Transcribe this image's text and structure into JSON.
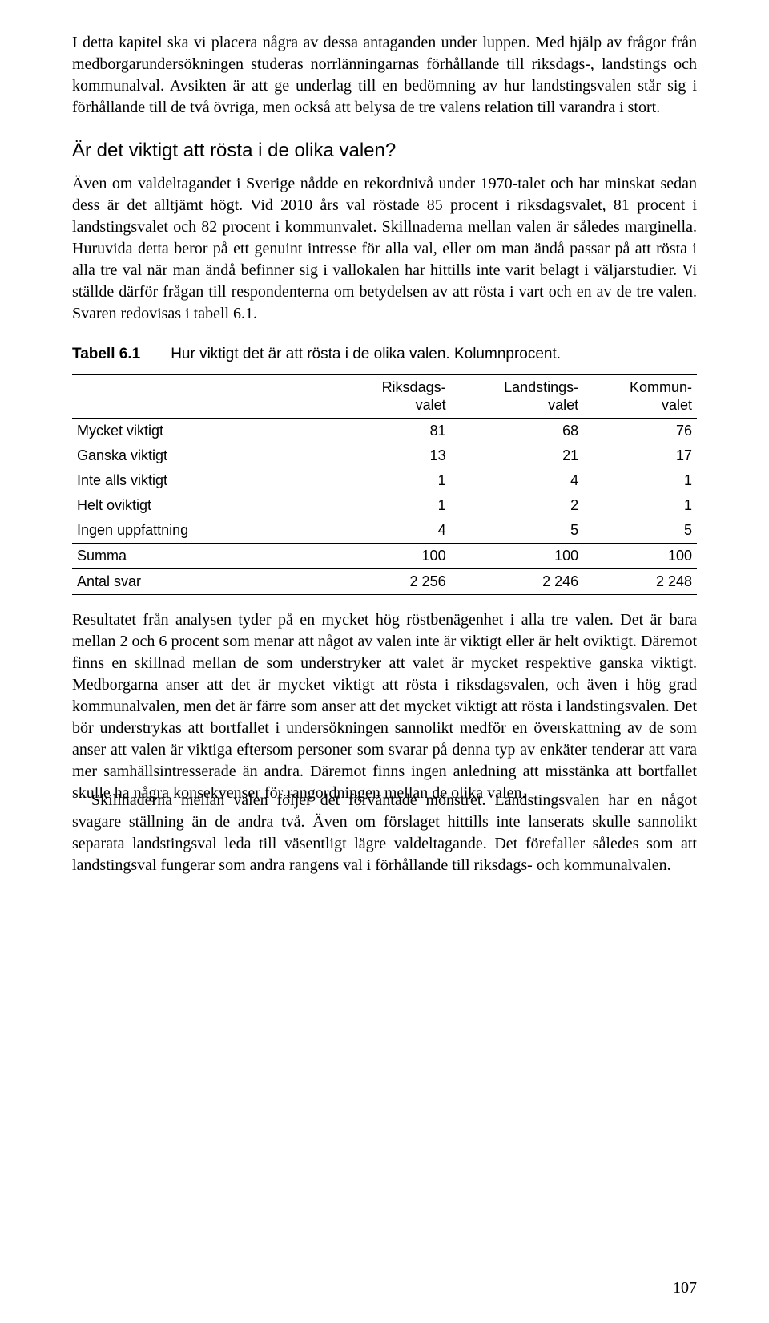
{
  "paragraphs": {
    "p1": "I detta kapitel ska vi placera några av dessa antaganden under luppen. Med hjälp av frågor från medborgarundersökningen studeras norrlänningarnas förhållande till riksdags-, landstings och kommunalval. Avsikten är att ge underlag till en bedömning av hur landstingsvalen står sig i förhållande till de två övriga, men också att belysa de tre valens relation till varandra i stort.",
    "p2": "Även om valdeltagandet i Sverige nådde en rekordnivå under 1970-talet och har minskat sedan dess är det alltjämt högt. Vid 2010 års val röstade 85 procent i riksdagsvalet, 81 procent i landstingsvalet och 82 procent i kommunvalet. Skillnaderna mellan valen är således marginella. Huruvida detta beror på ett genuint intresse för alla val, eller om man ändå passar på att rösta i alla tre val när man ändå befinner sig i vallokalen har hittills inte varit belagt i väljarstudier. Vi ställde därför frågan till respondenterna om betydelsen av att rösta i vart och en av de tre valen. Svaren redovisas i tabell 6.1.",
    "p3": "Resultatet från analysen tyder på en mycket hög röstbenägenhet i alla tre valen. Det är bara mellan 2 och 6 procent som menar att något av valen inte är viktigt eller är helt oviktigt. Däremot finns en skillnad mellan de som understryker att valet är mycket respektive ganska viktigt. Medborgarna anser att det är mycket viktigt att rösta i riksdagsvalen, och även i hög grad kommunalvalen, men det är färre som anser att det mycket viktigt att rösta i landstingsvalen. Det bör understrykas att bortfallet i undersökningen sannolikt medför en överskattning av de som anser att valen är viktiga eftersom personer som svarar på denna typ av enkäter tenderar att vara mer samhällsintresserade än andra. Däremot finns ingen anledning att misstänka att bortfallet skulle ha några konsekvenser för rangordningen mellan de olika valen.",
    "p4": "Skillnaderna mellan valen följer det förväntade mönstret. Landstingsvalen har en något svagare ställning än de andra två. Även om förslaget hittills inte lanserats skulle sannolikt separata landstingsval leda till väsentligt lägre valdeltagande. Det förefaller således som att landstingsval fungerar som andra rangens val i förhållande till riksdags- och kommunalvalen."
  },
  "heading": "Är det viktigt att rösta i de olika valen?",
  "table": {
    "caption_label": "Tabell 6.1",
    "caption_text": "Hur viktigt det är att rösta i de olika valen. Kolumnprocent.",
    "columns": [
      {
        "line1": "Riksdags-",
        "line2": "valet"
      },
      {
        "line1": "Landstings-",
        "line2": "valet"
      },
      {
        "line1": "Kommun-",
        "line2": "valet"
      }
    ],
    "rows": [
      {
        "label": "Mycket viktigt",
        "v": [
          "81",
          "68",
          "76"
        ]
      },
      {
        "label": "Ganska viktigt",
        "v": [
          "13",
          "21",
          "17"
        ]
      },
      {
        "label": "Inte alls viktigt",
        "v": [
          "1",
          "4",
          "1"
        ]
      },
      {
        "label": "Helt oviktigt",
        "v": [
          "1",
          "2",
          "1"
        ]
      },
      {
        "label": "Ingen uppfattning",
        "v": [
          "4",
          "5",
          "5"
        ]
      }
    ],
    "sum_row": {
      "label": "Summa",
      "v": [
        "100",
        "100",
        "100"
      ]
    },
    "n_row": {
      "label": "Antal svar",
      "v": [
        "2 256",
        "2 246",
        "2 248"
      ]
    }
  },
  "page_number": "107"
}
